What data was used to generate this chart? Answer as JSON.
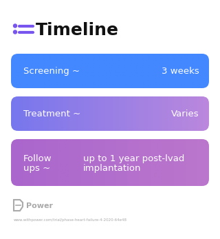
{
  "title": "Timeline",
  "title_fontsize": 18,
  "title_color": "#111111",
  "title_icon_color": "#7755ee",
  "background_color": "#ffffff",
  "cards": [
    {
      "label": "Screening ~",
      "value": "3 weeks",
      "grad_left": "#4488ff",
      "grad_right": "#4488ff",
      "text_color": "#ffffff",
      "type": "single_line"
    },
    {
      "label": "Treatment ~",
      "value": "Varies",
      "grad_left": "#7777ee",
      "grad_right": "#bb88dd",
      "text_color": "#ffffff",
      "type": "single_line"
    },
    {
      "label_line1": "Follow",
      "label_line2": "ups ~",
      "value_line1": "up to 1 year post-lvad",
      "value_line2": "implantation",
      "grad_left": "#aa66cc",
      "grad_right": "#bb77cc",
      "text_color": "#ffffff",
      "type": "multi_line"
    }
  ],
  "footer_logo_color": "#aaaaaa",
  "footer_text": "Power",
  "footer_url": "www.withpower.com/trial/phase-heart-failure-4-2020-64e48",
  "footer_color": "#aaaaaa"
}
